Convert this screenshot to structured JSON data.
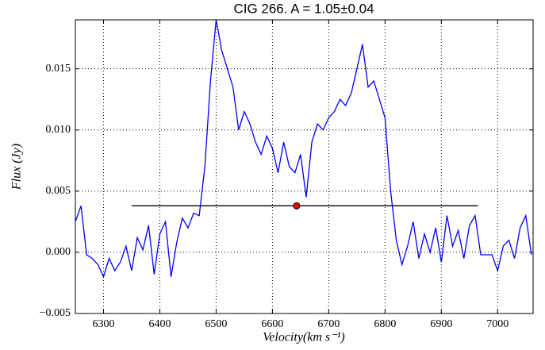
{
  "chart_data": {
    "type": "line",
    "title": "CIG 266. A = 1.05±0.04",
    "x_label": "Velocity(km s⁻¹)",
    "y_label": "Flux (Jy)",
    "x": [
      6250,
      6260,
      6270,
      6280,
      6290,
      6300,
      6310,
      6320,
      6330,
      6340,
      6350,
      6360,
      6370,
      6380,
      6390,
      6400,
      6410,
      6420,
      6430,
      6440,
      6450,
      6460,
      6470,
      6480,
      6490,
      6500,
      6510,
      6520,
      6530,
      6540,
      6550,
      6560,
      6570,
      6580,
      6590,
      6600,
      6610,
      6620,
      6630,
      6640,
      6650,
      6660,
      6670,
      6680,
      6690,
      6700,
      6710,
      6720,
      6730,
      6740,
      6750,
      6760,
      6770,
      6780,
      6790,
      6800,
      6810,
      6820,
      6830,
      6840,
      6850,
      6860,
      6870,
      6880,
      6890,
      6900,
      6910,
      6920,
      6930,
      6940,
      6950,
      6960,
      6970,
      6980,
      6990,
      7000,
      7010,
      7020,
      7030,
      7040,
      7050,
      7060
    ],
    "series": [
      {
        "name": "Flux",
        "color": "#0000ff",
        "values": [
          0.0025,
          0.0038,
          -0.0002,
          -0.0005,
          -0.001,
          -0.002,
          -0.0005,
          -0.0015,
          -0.0008,
          0.0005,
          -0.0015,
          0.0012,
          0.0002,
          0.0022,
          -0.0018,
          0.0015,
          0.0025,
          -0.002,
          0.0008,
          0.0028,
          0.002,
          0.0032,
          0.003,
          0.007,
          0.014,
          0.019,
          0.0165,
          0.015,
          0.0135,
          0.01,
          0.0115,
          0.0105,
          0.009,
          0.008,
          0.0095,
          0.0085,
          0.0065,
          0.009,
          0.007,
          0.0065,
          0.008,
          0.0045,
          0.009,
          0.0105,
          0.01,
          0.011,
          0.0115,
          0.0125,
          0.012,
          0.013,
          0.015,
          0.017,
          0.0135,
          0.014,
          0.0125,
          0.011,
          0.005,
          0.001,
          -0.001,
          0.0005,
          0.0025,
          -0.0005,
          0.0015,
          0,
          0.002,
          -0.0008,
          0.003,
          0.0005,
          0.0018,
          -0.0005,
          0.0022,
          0.003,
          -0.0002,
          -0.0002,
          -0.0002,
          -0.0015,
          0.0005,
          0.001,
          -0.0005,
          0.002,
          0.003,
          -0.0002
        ]
      }
    ],
    "level_line": {
      "x": [
        6350,
        6965
      ],
      "y": 0.0038,
      "color": "#000000"
    },
    "marker": {
      "x": 6643,
      "y": 0.0038,
      "color": "#ff0000"
    },
    "xlim": [
      6250,
      7063
    ],
    "ylim": [
      -0.005,
      0.019
    ],
    "xticks": [
      6300,
      6400,
      6500,
      6600,
      6700,
      6800,
      6900,
      7000
    ],
    "yticks": [
      {
        "value": -0.005,
        "label": "−0.005"
      },
      {
        "value": 0,
        "label": "0.000"
      },
      {
        "value": 0.005,
        "label": "0.005"
      },
      {
        "value": 0.01,
        "label": "0.010"
      },
      0.015
    ],
    "grid": true
  }
}
